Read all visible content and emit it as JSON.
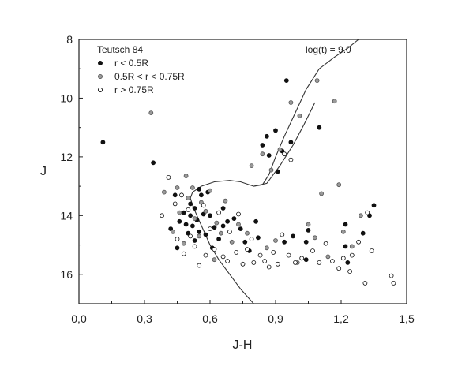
{
  "chart_data": {
    "type": "scatter",
    "title": "",
    "cluster_label": "Teutsch 84",
    "isochrone_label": "log(t) = 9.0",
    "xlabel": "J-H",
    "ylabel": "J",
    "xlim": [
      0.0,
      1.5
    ],
    "ylim": [
      17,
      8
    ],
    "y_inverted": true,
    "grid": false,
    "legend_position": "top-left",
    "x_ticks": [
      0.0,
      0.3,
      0.6,
      0.9,
      1.2,
      1.5
    ],
    "x_tick_labels": [
      "0,0",
      "0,3",
      "0,6",
      "0,9",
      "1,2",
      "1,5"
    ],
    "y_ticks": [
      8,
      10,
      12,
      14,
      16
    ],
    "y_tick_labels": [
      "8",
      "10",
      "12",
      "14",
      "16"
    ],
    "series": [
      {
        "name": "r < 0.5R",
        "marker": "filled-circle",
        "color": "#111111",
        "points": [
          [
            0.11,
            11.5
          ],
          [
            0.34,
            12.2
          ],
          [
            0.42,
            14.45
          ],
          [
            0.44,
            13.3
          ],
          [
            0.45,
            15.1
          ],
          [
            0.46,
            14.2
          ],
          [
            0.48,
            13.9
          ],
          [
            0.49,
            14.3
          ],
          [
            0.5,
            14.6
          ],
          [
            0.51,
            13.6
          ],
          [
            0.51,
            14.0
          ],
          [
            0.52,
            14.35
          ],
          [
            0.53,
            13.75
          ],
          [
            0.53,
            14.85
          ],
          [
            0.54,
            14.15
          ],
          [
            0.55,
            13.1
          ],
          [
            0.55,
            14.55
          ],
          [
            0.56,
            13.3
          ],
          [
            0.57,
            13.95
          ],
          [
            0.58,
            14.65
          ],
          [
            0.59,
            13.2
          ],
          [
            0.6,
            14.0
          ],
          [
            0.61,
            15.1
          ],
          [
            0.62,
            14.4
          ],
          [
            0.64,
            14.8
          ],
          [
            0.66,
            13.75
          ],
          [
            0.68,
            14.2
          ],
          [
            0.71,
            14.1
          ],
          [
            0.74,
            14.45
          ],
          [
            0.76,
            14.9
          ],
          [
            0.78,
            15.2
          ],
          [
            0.81,
            14.2
          ],
          [
            0.82,
            14.75
          ],
          [
            0.84,
            11.6
          ],
          [
            0.86,
            11.3
          ],
          [
            0.87,
            11.95
          ],
          [
            0.9,
            11.1
          ],
          [
            0.91,
            12.5
          ],
          [
            0.93,
            11.8
          ],
          [
            0.94,
            14.9
          ],
          [
            0.95,
            9.4
          ],
          [
            0.97,
            11.5
          ],
          [
            0.98,
            14.7
          ],
          [
            1.04,
            14.9
          ],
          [
            1.04,
            15.5
          ],
          [
            1.05,
            14.5
          ],
          [
            1.1,
            11.0
          ],
          [
            1.22,
            15.05
          ],
          [
            1.23,
            15.6
          ],
          [
            1.3,
            14.6
          ],
          [
            1.33,
            14.0
          ],
          [
            1.35,
            13.65
          ],
          [
            1.22,
            14.3
          ],
          [
            0.66,
            14.35
          ]
        ]
      },
      {
        "name": "0.5R < r < 0.75R",
        "marker": "gray-circle",
        "color": "#9a9a9a",
        "points": [
          [
            0.33,
            10.5
          ],
          [
            0.39,
            13.2
          ],
          [
            0.43,
            14.55
          ],
          [
            0.45,
            13.05
          ],
          [
            0.46,
            13.9
          ],
          [
            0.48,
            14.95
          ],
          [
            0.49,
            12.65
          ],
          [
            0.5,
            13.4
          ],
          [
            0.52,
            13.05
          ],
          [
            0.53,
            14.1
          ],
          [
            0.55,
            14.7
          ],
          [
            0.56,
            13.55
          ],
          [
            0.58,
            13.85
          ],
          [
            0.6,
            13.15
          ],
          [
            0.63,
            14.25
          ],
          [
            0.65,
            14.6
          ],
          [
            0.67,
            13.5
          ],
          [
            0.7,
            14.9
          ],
          [
            0.73,
            14.3
          ],
          [
            0.77,
            14.6
          ],
          [
            0.79,
            12.3
          ],
          [
            0.84,
            11.9
          ],
          [
            0.86,
            15.1
          ],
          [
            0.88,
            12.45
          ],
          [
            0.9,
            14.85
          ],
          [
            0.92,
            11.75
          ],
          [
            0.97,
            10.15
          ],
          [
            1.0,
            15.6
          ],
          [
            1.01,
            10.6
          ],
          [
            1.05,
            14.3
          ],
          [
            1.09,
            9.4
          ],
          [
            1.11,
            13.25
          ],
          [
            1.14,
            15.4
          ],
          [
            1.17,
            10.1
          ],
          [
            1.19,
            12.95
          ],
          [
            1.21,
            14.55
          ],
          [
            1.25,
            15.05
          ],
          [
            1.29,
            14.0
          ],
          [
            1.08,
            14.75
          ],
          [
            0.62,
            15.5
          ]
        ]
      },
      {
        "name": "r > 0.75R",
        "marker": "open-circle",
        "color": "#111111",
        "points": [
          [
            0.38,
            14.0
          ],
          [
            0.41,
            12.7
          ],
          [
            0.44,
            13.6
          ],
          [
            0.45,
            14.8
          ],
          [
            0.47,
            13.3
          ],
          [
            0.48,
            15.3
          ],
          [
            0.5,
            13.8
          ],
          [
            0.51,
            14.7
          ],
          [
            0.53,
            15.05
          ],
          [
            0.55,
            15.7
          ],
          [
            0.57,
            13.65
          ],
          [
            0.58,
            15.35
          ],
          [
            0.6,
            14.45
          ],
          [
            0.62,
            15.15
          ],
          [
            0.64,
            13.9
          ],
          [
            0.66,
            15.4
          ],
          [
            0.68,
            15.55
          ],
          [
            0.69,
            14.55
          ],
          [
            0.72,
            15.25
          ],
          [
            0.73,
            13.95
          ],
          [
            0.75,
            15.65
          ],
          [
            0.77,
            15.15
          ],
          [
            0.79,
            14.8
          ],
          [
            0.8,
            15.6
          ],
          [
            0.83,
            15.35
          ],
          [
            0.85,
            15.55
          ],
          [
            0.87,
            15.75
          ],
          [
            0.89,
            15.25
          ],
          [
            0.91,
            15.65
          ],
          [
            0.93,
            14.65
          ],
          [
            0.96,
            15.35
          ],
          [
            0.99,
            15.6
          ],
          [
            1.02,
            15.45
          ],
          [
            1.07,
            15.2
          ],
          [
            1.1,
            15.6
          ],
          [
            1.13,
            14.95
          ],
          [
            1.16,
            15.55
          ],
          [
            1.19,
            15.8
          ],
          [
            1.21,
            15.45
          ],
          [
            1.24,
            15.9
          ],
          [
            1.25,
            15.35
          ],
          [
            1.28,
            14.9
          ],
          [
            1.31,
            16.3
          ],
          [
            1.34,
            15.2
          ],
          [
            1.43,
            16.05
          ],
          [
            1.44,
            16.3
          ],
          [
            1.32,
            13.9
          ],
          [
            0.94,
            11.9
          ],
          [
            0.97,
            12.1
          ]
        ]
      }
    ],
    "isochrone": [
      [
        0.8,
        17.0
      ],
      [
        0.74,
        16.5
      ],
      [
        0.69,
        16.0
      ],
      [
        0.64,
        15.5
      ],
      [
        0.6,
        15.0
      ],
      [
        0.57,
        14.5
      ],
      [
        0.54,
        14.0
      ],
      [
        0.52,
        13.65
      ],
      [
        0.51,
        13.4
      ],
      [
        0.52,
        13.2
      ],
      [
        0.56,
        13.0
      ],
      [
        0.62,
        12.85
      ],
      [
        0.69,
        12.8
      ],
      [
        0.74,
        12.85
      ],
      [
        0.8,
        13.0
      ],
      [
        0.84,
        12.95
      ],
      [
        0.87,
        12.6
      ],
      [
        0.9,
        12.0
      ],
      [
        0.94,
        11.3
      ],
      [
        0.99,
        10.5
      ],
      [
        1.04,
        9.7
      ],
      [
        1.1,
        9.0
      ],
      [
        1.17,
        8.6
      ],
      [
        1.23,
        8.3
      ],
      [
        1.28,
        8.0
      ]
    ],
    "isochrone_branch": [
      [
        0.8,
        13.0
      ],
      [
        0.86,
        12.9
      ],
      [
        0.92,
        12.3
      ],
      [
        0.98,
        11.6
      ],
      [
        1.03,
        10.9
      ],
      [
        1.08,
        10.15
      ]
    ]
  }
}
